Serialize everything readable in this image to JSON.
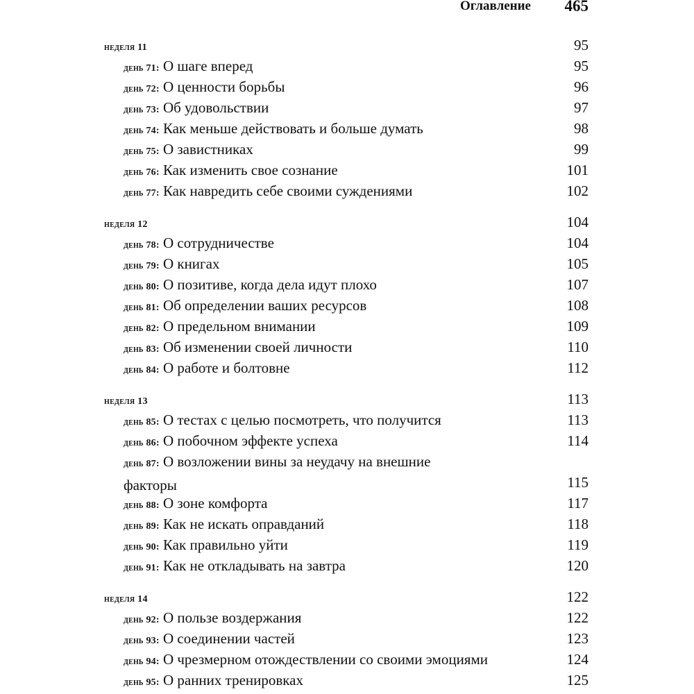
{
  "header": {
    "title": "Оглавление",
    "page_number": "465"
  },
  "weeks": [
    {
      "label": "неделя 11",
      "page": "95",
      "entries": [
        {
          "label": "день 71:",
          "title": "О шаге вперед",
          "page": "95"
        },
        {
          "label": "день 72:",
          "title": "О ценности борьбы",
          "page": "96"
        },
        {
          "label": "день 73:",
          "title": "Об удовольствии",
          "page": "97"
        },
        {
          "label": "день 74:",
          "title": "Как меньше действовать и больше думать",
          "page": "98"
        },
        {
          "label": "день 75:",
          "title": "О завистниках",
          "page": "99"
        },
        {
          "label": "день 76:",
          "title": "Как изменить свое сознание",
          "page": "101"
        },
        {
          "label": "день 77:",
          "title": "Как навредить себе своими суждениями",
          "page": "102"
        }
      ]
    },
    {
      "label": "неделя 12",
      "page": "104",
      "entries": [
        {
          "label": "день 78:",
          "title": "О сотрудничестве",
          "page": "104"
        },
        {
          "label": "день 79:",
          "title": "О книгах",
          "page": "105"
        },
        {
          "label": "день 80:",
          "title": "О позитиве, когда дела идут плохо",
          "page": "107"
        },
        {
          "label": "день 81:",
          "title": "Об определении ваших ресурсов",
          "page": "108"
        },
        {
          "label": "день 82:",
          "title": "О предельном внимании",
          "page": "109"
        },
        {
          "label": "день 83:",
          "title": "Об изменении своей личности",
          "page": "110"
        },
        {
          "label": "день 84:",
          "title": "О работе и болтовне",
          "page": "112"
        }
      ]
    },
    {
      "label": "неделя 13",
      "page": "113",
      "entries": [
        {
          "label": "день 85:",
          "title": "О тестах с целью посмотреть, что получится",
          "page": "113"
        },
        {
          "label": "день 86:",
          "title": "О побочном эффекте успеха",
          "page": "114"
        },
        {
          "label": "день 87:",
          "title": "О возложении вины за неудачу на внешние",
          "title_line2": "факторы",
          "page": "115"
        },
        {
          "label": "день 88:",
          "title": "О зоне комфорта",
          "page": "117"
        },
        {
          "label": "день 89:",
          "title": "Как не искать оправданий",
          "page": "118"
        },
        {
          "label": "день 90:",
          "title": "Как правильно уйти",
          "page": "119"
        },
        {
          "label": "день 91:",
          "title": "Как не откладывать на завтра",
          "page": "120"
        }
      ]
    },
    {
      "label": "неделя 14",
      "page": "122",
      "entries": [
        {
          "label": "день 92:",
          "title": "О пользе воздержания",
          "page": "122"
        },
        {
          "label": "день 93:",
          "title": "О соединении частей",
          "page": "123"
        },
        {
          "label": "день 94:",
          "title": "О чрезмерном отождествлении со своими эмоциями",
          "page": "124"
        },
        {
          "label": "день 95:",
          "title": "О ранних тренировках",
          "page": "125"
        }
      ]
    }
  ]
}
